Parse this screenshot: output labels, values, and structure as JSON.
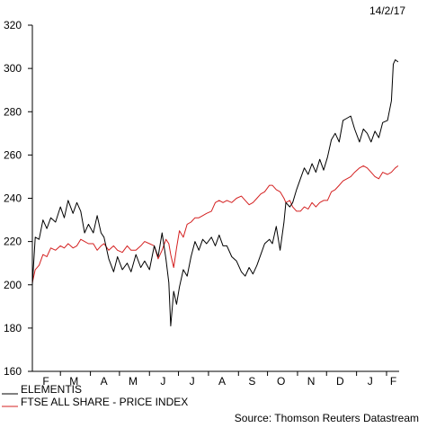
{
  "date_label": "14/2/17",
  "source": "Source: Thomson Reuters Datastream",
  "colors": {
    "elementis": "#000000",
    "ftse": "#d42020",
    "axis": "#000000"
  },
  "chart_data": {
    "type": "line",
    "ylim": [
      160,
      320
    ],
    "yticks": [
      160,
      180,
      200,
      220,
      240,
      260,
      280,
      300,
      320
    ],
    "x_range": [
      "2016-02-01",
      "2017-02-14"
    ],
    "month_labels": [
      "F",
      "M",
      "A",
      "M",
      "J",
      "J",
      "A",
      "S",
      "O",
      "N",
      "D",
      "J",
      "F"
    ],
    "month_label_dates": [
      "2016-02-15",
      "2016-03-15",
      "2016-04-15",
      "2016-05-15",
      "2016-06-15",
      "2016-07-15",
      "2016-08-15",
      "2016-09-15",
      "2016-10-15",
      "2016-11-15",
      "2016-12-15",
      "2017-01-15",
      "2017-02-08"
    ],
    "series": [
      {
        "name": "ELEMENTIS",
        "color": "#000000",
        "points": [
          [
            "2016-02-01",
            200
          ],
          [
            "2016-02-04",
            222
          ],
          [
            "2016-02-08",
            221
          ],
          [
            "2016-02-12",
            230
          ],
          [
            "2016-02-16",
            226
          ],
          [
            "2016-02-20",
            231
          ],
          [
            "2016-02-25",
            229
          ],
          [
            "2016-03-01",
            236
          ],
          [
            "2016-03-05",
            231
          ],
          [
            "2016-03-09",
            239
          ],
          [
            "2016-03-14",
            233
          ],
          [
            "2016-03-18",
            238
          ],
          [
            "2016-03-22",
            234
          ],
          [
            "2016-03-26",
            224
          ],
          [
            "2016-03-30",
            228
          ],
          [
            "2016-04-04",
            224
          ],
          [
            "2016-04-08",
            232
          ],
          [
            "2016-04-12",
            224
          ],
          [
            "2016-04-15",
            222
          ],
          [
            "2016-04-20",
            212
          ],
          [
            "2016-04-25",
            206
          ],
          [
            "2016-04-29",
            213
          ],
          [
            "2016-05-04",
            207
          ],
          [
            "2016-05-09",
            210
          ],
          [
            "2016-05-13",
            206
          ],
          [
            "2016-05-18",
            214
          ],
          [
            "2016-05-23",
            208
          ],
          [
            "2016-05-27",
            211
          ],
          [
            "2016-06-01",
            207
          ],
          [
            "2016-06-06",
            218
          ],
          [
            "2016-06-10",
            213
          ],
          [
            "2016-06-14",
            224
          ],
          [
            "2016-06-18",
            212
          ],
          [
            "2016-06-21",
            201
          ],
          [
            "2016-06-23",
            181
          ],
          [
            "2016-06-26",
            197
          ],
          [
            "2016-06-29",
            191
          ],
          [
            "2016-07-02",
            199
          ],
          [
            "2016-07-06",
            207
          ],
          [
            "2016-07-10",
            204
          ],
          [
            "2016-07-14",
            213
          ],
          [
            "2016-07-18",
            220
          ],
          [
            "2016-07-22",
            216
          ],
          [
            "2016-07-26",
            221
          ],
          [
            "2016-07-30",
            219
          ],
          [
            "2016-08-04",
            222
          ],
          [
            "2016-08-08",
            218
          ],
          [
            "2016-08-12",
            223
          ],
          [
            "2016-08-16",
            218
          ],
          [
            "2016-08-20",
            218
          ],
          [
            "2016-08-25",
            213
          ],
          [
            "2016-08-30",
            211
          ],
          [
            "2016-09-04",
            206
          ],
          [
            "2016-09-08",
            204
          ],
          [
            "2016-09-12",
            208
          ],
          [
            "2016-09-16",
            205
          ],
          [
            "2016-09-20",
            209
          ],
          [
            "2016-09-24",
            214
          ],
          [
            "2016-09-28",
            219
          ],
          [
            "2016-10-03",
            221
          ],
          [
            "2016-10-06",
            219
          ],
          [
            "2016-10-10",
            227
          ],
          [
            "2016-10-14",
            216
          ],
          [
            "2016-10-18",
            229
          ],
          [
            "2016-10-20",
            238
          ],
          [
            "2016-10-24",
            236
          ],
          [
            "2016-10-27",
            238
          ],
          [
            "2016-10-31",
            244
          ],
          [
            "2016-11-04",
            249
          ],
          [
            "2016-11-08",
            254
          ],
          [
            "2016-11-12",
            251
          ],
          [
            "2016-11-16",
            256
          ],
          [
            "2016-11-20",
            252
          ],
          [
            "2016-11-24",
            258
          ],
          [
            "2016-11-28",
            253
          ],
          [
            "2016-12-02",
            259
          ],
          [
            "2016-12-06",
            267
          ],
          [
            "2016-12-10",
            270
          ],
          [
            "2016-12-14",
            266
          ],
          [
            "2016-12-18",
            276
          ],
          [
            "2016-12-22",
            277
          ],
          [
            "2016-12-26",
            278
          ],
          [
            "2016-12-30",
            272
          ],
          [
            "2017-01-04",
            266
          ],
          [
            "2017-01-08",
            272
          ],
          [
            "2017-01-12",
            270
          ],
          [
            "2017-01-16",
            266
          ],
          [
            "2017-01-20",
            271
          ],
          [
            "2017-01-24",
            268
          ],
          [
            "2017-01-28",
            275
          ],
          [
            "2017-02-02",
            276
          ],
          [
            "2017-02-06",
            285
          ],
          [
            "2017-02-08",
            302
          ],
          [
            "2017-02-10",
            304
          ],
          [
            "2017-02-13",
            303
          ]
        ]
      },
      {
        "name": "FTSE ALL SHARE - PRICE INDEX",
        "color": "#d42020",
        "points": [
          [
            "2016-02-01",
            201
          ],
          [
            "2016-02-04",
            207
          ],
          [
            "2016-02-08",
            209
          ],
          [
            "2016-02-12",
            214
          ],
          [
            "2016-02-16",
            213
          ],
          [
            "2016-02-20",
            217
          ],
          [
            "2016-02-25",
            216
          ],
          [
            "2016-03-01",
            218
          ],
          [
            "2016-03-05",
            217
          ],
          [
            "2016-03-09",
            219
          ],
          [
            "2016-03-14",
            217
          ],
          [
            "2016-03-18",
            218
          ],
          [
            "2016-03-22",
            221
          ],
          [
            "2016-03-26",
            220
          ],
          [
            "2016-03-30",
            219
          ],
          [
            "2016-04-04",
            219
          ],
          [
            "2016-04-08",
            216
          ],
          [
            "2016-04-12",
            218
          ],
          [
            "2016-04-15",
            219
          ],
          [
            "2016-04-20",
            216
          ],
          [
            "2016-04-25",
            218
          ],
          [
            "2016-04-29",
            216
          ],
          [
            "2016-05-04",
            215
          ],
          [
            "2016-05-09",
            218
          ],
          [
            "2016-05-13",
            216
          ],
          [
            "2016-05-18",
            216
          ],
          [
            "2016-05-23",
            218
          ],
          [
            "2016-05-27",
            220
          ],
          [
            "2016-06-01",
            219
          ],
          [
            "2016-06-06",
            218
          ],
          [
            "2016-06-10",
            212
          ],
          [
            "2016-06-14",
            216
          ],
          [
            "2016-06-18",
            221
          ],
          [
            "2016-06-21",
            219
          ],
          [
            "2016-06-23",
            214
          ],
          [
            "2016-06-26",
            208
          ],
          [
            "2016-06-29",
            217
          ],
          [
            "2016-07-02",
            225
          ],
          [
            "2016-07-06",
            222
          ],
          [
            "2016-07-10",
            228
          ],
          [
            "2016-07-14",
            229
          ],
          [
            "2016-07-18",
            231
          ],
          [
            "2016-07-22",
            231
          ],
          [
            "2016-07-26",
            232
          ],
          [
            "2016-07-30",
            233
          ],
          [
            "2016-08-04",
            234
          ],
          [
            "2016-08-08",
            238
          ],
          [
            "2016-08-12",
            239
          ],
          [
            "2016-08-16",
            238
          ],
          [
            "2016-08-20",
            239
          ],
          [
            "2016-08-25",
            238
          ],
          [
            "2016-08-30",
            240
          ],
          [
            "2016-09-04",
            241
          ],
          [
            "2016-09-08",
            239
          ],
          [
            "2016-09-12",
            237
          ],
          [
            "2016-09-16",
            238
          ],
          [
            "2016-09-20",
            240
          ],
          [
            "2016-09-24",
            242
          ],
          [
            "2016-09-28",
            243
          ],
          [
            "2016-10-03",
            246
          ],
          [
            "2016-10-06",
            246
          ],
          [
            "2016-10-10",
            244
          ],
          [
            "2016-10-14",
            243
          ],
          [
            "2016-10-18",
            240
          ],
          [
            "2016-10-20",
            238
          ],
          [
            "2016-10-24",
            239
          ],
          [
            "2016-10-27",
            236
          ],
          [
            "2016-10-31",
            234
          ],
          [
            "2016-11-04",
            234
          ],
          [
            "2016-11-08",
            236
          ],
          [
            "2016-11-12",
            235
          ],
          [
            "2016-11-16",
            238
          ],
          [
            "2016-11-20",
            236
          ],
          [
            "2016-11-24",
            238
          ],
          [
            "2016-11-28",
            239
          ],
          [
            "2016-12-02",
            239
          ],
          [
            "2016-12-06",
            243
          ],
          [
            "2016-12-10",
            244
          ],
          [
            "2016-12-14",
            246
          ],
          [
            "2016-12-18",
            248
          ],
          [
            "2016-12-22",
            249
          ],
          [
            "2016-12-26",
            250
          ],
          [
            "2016-12-30",
            252
          ],
          [
            "2017-01-04",
            254
          ],
          [
            "2017-01-08",
            255
          ],
          [
            "2017-01-12",
            254
          ],
          [
            "2017-01-16",
            252
          ],
          [
            "2017-01-20",
            250
          ],
          [
            "2017-01-24",
            249
          ],
          [
            "2017-01-28",
            252
          ],
          [
            "2017-02-02",
            251
          ],
          [
            "2017-02-06",
            252
          ],
          [
            "2017-02-08",
            253
          ],
          [
            "2017-02-10",
            254
          ],
          [
            "2017-02-13",
            255
          ]
        ]
      }
    ]
  }
}
